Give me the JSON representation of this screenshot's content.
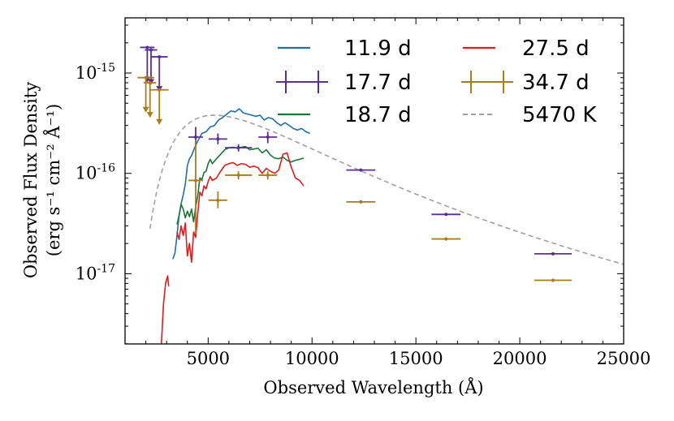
{
  "chart_data": {
    "type": "line",
    "xlabel": "Observed Wavelength (Å)",
    "ylabel_line1": "Observed Flux Density",
    "ylabel_line2": "(erg s⁻¹ cm⁻² Å⁻¹)",
    "xlim": [
      1000,
      25000
    ],
    "ylim_log10": [
      -17.7,
      -14.45
    ],
    "x_ticks": [
      5000,
      10000,
      15000,
      20000,
      25000
    ],
    "x_tick_labels": [
      "5000",
      "10000",
      "15000",
      "20000",
      "25000"
    ],
    "y_ticks_log10": [
      -17,
      -16,
      -15
    ],
    "y_tick_labels": [
      {
        "base": "10",
        "exp": "-17"
      },
      {
        "base": "10",
        "exp": "-16"
      },
      {
        "base": "10",
        "exp": "-15"
      }
    ],
    "legend_position": "top-right",
    "colors": {
      "d11_9": "#1f6fad",
      "d17_7": "#5b2f91",
      "d18_7": "#1a7437",
      "d27_5": "#e31a1c",
      "d34_7": "#a97c1c",
      "bb": "#a0a0a0"
    },
    "series": [
      {
        "name": "11.9 d",
        "kind": "spectrum",
        "color_key": "d11_9",
        "x": [
          3300,
          3400,
          3500,
          3600,
          3700,
          3800,
          3900,
          4000,
          4100,
          4200,
          4300,
          4400,
          4500,
          4700,
          4900,
          5100,
          5300,
          5500,
          5700,
          5900,
          6100,
          6300,
          6500,
          6700,
          6900,
          7100,
          7300,
          7500,
          7700,
          7900,
          8100,
          8300,
          8500,
          8700,
          8900,
          9100,
          9300,
          9500,
          9700,
          9900
        ],
        "y": [
          1.4e-17,
          1.6e-17,
          2.4e-17,
          3.8e-17,
          5e-17,
          6.1e-17,
          7.8e-17,
          1.2e-16,
          1.4e-16,
          1.5e-16,
          1.7e-16,
          1.9e-16,
          2.1e-16,
          2.5e-16,
          2.6e-16,
          2.9e-16,
          3e-16,
          3.4e-16,
          3.6e-16,
          3.9e-16,
          4.2e-16,
          4.1e-16,
          4.4e-16,
          4e-16,
          3.9e-16,
          3.8e-16,
          3.7e-16,
          3.8e-16,
          3.4e-16,
          3.6e-16,
          3.5e-16,
          3.2e-16,
          3e-16,
          3.2e-16,
          3e-16,
          2.8e-16,
          2.7e-16,
          2.8e-16,
          2.6e-16,
          2.5e-16
        ]
      },
      {
        "name": "17.7 d",
        "kind": "photometry",
        "color_key": "d17_7",
        "points": [
          {
            "x": 2070,
            "xerr": 350,
            "y": 1.8e-15,
            "upper_limit": true
          },
          {
            "x": 2250,
            "xerr": 300,
            "y": 1.7e-15,
            "upper_limit": true
          },
          {
            "x": 2650,
            "xerr": 400,
            "y": 1.45e-15,
            "upper_limit": true
          },
          {
            "x": 4400,
            "xerr": 350,
            "y": 2.3e-16,
            "yerr_low": 4e-17,
            "yerr_high": 6e-17
          },
          {
            "x": 5470,
            "xerr": 450,
            "y": 2.2e-16,
            "yerr_low": 2.5e-17,
            "yerr_high": 3e-17
          },
          {
            "x": 6460,
            "xerr": 650,
            "y": 1.8e-16,
            "yerr_low": 1.5e-17,
            "yerr_high": 1.5e-17
          },
          {
            "x": 7870,
            "xerr": 450,
            "y": 2.3e-16,
            "yerr_low": 3e-17,
            "yerr_high": 3e-17
          },
          {
            "x": 12350,
            "xerr": 700,
            "y": 1.08e-16,
            "yerr_low": 3e-18,
            "yerr_high": 3e-18
          },
          {
            "x": 16450,
            "xerr": 700,
            "y": 3.9e-17,
            "yerr_low": 1e-18,
            "yerr_high": 1e-18
          },
          {
            "x": 21600,
            "xerr": 900,
            "y": 1.58e-17,
            "yerr_low": 5e-19,
            "yerr_high": 5e-19
          }
        ]
      },
      {
        "name": "18.7 d",
        "kind": "spectrum",
        "color_key": "d18_7",
        "x": [
          3500,
          3600,
          3700,
          3800,
          3900,
          4000,
          4100,
          4200,
          4300,
          4400,
          4500,
          4600,
          4700,
          4800,
          4900,
          5000,
          5100,
          5200,
          5400,
          5600,
          5800,
          6000,
          6200,
          6400,
          6600,
          6800,
          7000,
          7200,
          7400,
          7600,
          7800,
          8000,
          8200,
          8400,
          8600,
          8800,
          9000,
          9200,
          9400,
          9600
        ],
        "y": [
          3.1e-17,
          3.8e-17,
          4.9e-17,
          4.4e-17,
          3.6e-17,
          4.2e-17,
          3.7e-17,
          4.4e-17,
          3.3e-17,
          4.6e-17,
          6e-17,
          9e-17,
          8.7e-17,
          1.02e-16,
          1.05e-16,
          1.25e-16,
          1.38e-16,
          1.25e-16,
          1.4e-16,
          1.55e-16,
          1.72e-16,
          1.8e-16,
          1.82e-16,
          1.78e-16,
          1.82e-16,
          1.85e-16,
          1.72e-16,
          1.75e-16,
          1.78e-16,
          1.6e-16,
          1.72e-16,
          1.52e-16,
          1.42e-16,
          1.4e-16,
          1.45e-16,
          1.35e-16,
          1.3e-16,
          1.35e-16,
          1.38e-16,
          1.42e-16
        ]
      },
      {
        "name": "27.5 d",
        "kind": "spectrum",
        "color_key": "d27_5",
        "x": [
          2750,
          2850,
          2950,
          3050,
          3100,
          3200,
          3300,
          3400,
          3500,
          3600,
          3700,
          3800,
          3900,
          4000,
          4100,
          4200,
          4300,
          4400,
          4500,
          4600,
          4700,
          4800,
          4900,
          5000,
          5100,
          5200,
          5400,
          5600,
          5800,
          6000,
          6200,
          6400,
          6600,
          6800,
          7000,
          7200,
          7400,
          7600,
          7800,
          8000,
          8200,
          8400,
          8600,
          8800,
          9000,
          9200,
          9400,
          9600
        ],
        "y": [
          2e-18,
          5e-18,
          8e-18,
          9.5e-18,
          7.5e-18,
          null,
          null,
          null,
          2.6e-17,
          2.2e-17,
          3e-17,
          2.4e-17,
          3.2e-17,
          1.5e-17,
          2e-17,
          1.3e-17,
          2.6e-17,
          2.3e-17,
          4e-17,
          6.5e-17,
          6e-17,
          7.5e-17,
          7e-17,
          8.3e-17,
          9.3e-17,
          8.5e-17,
          9e-17,
          1.05e-16,
          1.2e-16,
          1.25e-16,
          1.28e-16,
          1.2e-16,
          1.25e-16,
          1.23e-16,
          1.15e-16,
          1.18e-16,
          1.14e-16,
          1e-16,
          1.12e-16,
          1.05e-16,
          1e-16,
          1.08e-16,
          1.55e-16,
          1.6e-16,
          1.15e-16,
          9e-17,
          8.5e-17,
          7.5e-17
        ]
      },
      {
        "name": "34.7 d",
        "kind": "photometry",
        "color_key": "d34_7",
        "points": [
          {
            "x": 2000,
            "xerr": 400,
            "y": 9e-16,
            "upper_limit": true
          },
          {
            "x": 2200,
            "xerr": 300,
            "y": 8e-16,
            "upper_limit": true
          },
          {
            "x": 2650,
            "xerr": 450,
            "y": 6.8e-16,
            "upper_limit": true
          },
          {
            "x": 4400,
            "xerr": 350,
            "y": 8.5e-17,
            "yerr_low": 6e-17,
            "yerr_high": 1.3e-16
          },
          {
            "x": 5470,
            "xerr": 450,
            "y": 5.4e-17,
            "yerr_low": 9e-18,
            "yerr_high": 1.2e-17
          },
          {
            "x": 6460,
            "xerr": 650,
            "y": 9.6e-17,
            "yerr_low": 9e-18,
            "yerr_high": 9e-18
          },
          {
            "x": 7870,
            "xerr": 450,
            "y": 9.6e-17,
            "yerr_low": 9e-18,
            "yerr_high": 9e-18
          },
          {
            "x": 12350,
            "xerr": 700,
            "y": 5.2e-17,
            "yerr_low": 2e-18,
            "yerr_high": 2e-18
          },
          {
            "x": 16450,
            "xerr": 700,
            "y": 2.22e-17,
            "yerr_low": 6e-19,
            "yerr_high": 6e-19
          },
          {
            "x": 21600,
            "xerr": 900,
            "y": 8.6e-18,
            "yerr_low": 3e-19,
            "yerr_high": 3e-19
          }
        ]
      },
      {
        "name": "5470 K",
        "kind": "blackbody",
        "color_key": "bb",
        "temperature_K": 5470,
        "peak_flux": 3.8e-16,
        "x_range": [
          2200,
          25000
        ]
      }
    ],
    "legend": [
      {
        "label": "11.9 d",
        "kind": "line",
        "color_key": "d11_9"
      },
      {
        "label": "27.5 d",
        "kind": "line",
        "color_key": "d27_5"
      },
      {
        "label": "17.7 d",
        "kind": "errorbar",
        "color_key": "d17_7"
      },
      {
        "label": "34.7 d",
        "kind": "errorbar",
        "color_key": "d34_7"
      },
      {
        "label": "18.7 d",
        "kind": "line",
        "color_key": "d18_7"
      },
      {
        "label": "5470 K",
        "kind": "dashed",
        "color_key": "bb"
      }
    ]
  }
}
